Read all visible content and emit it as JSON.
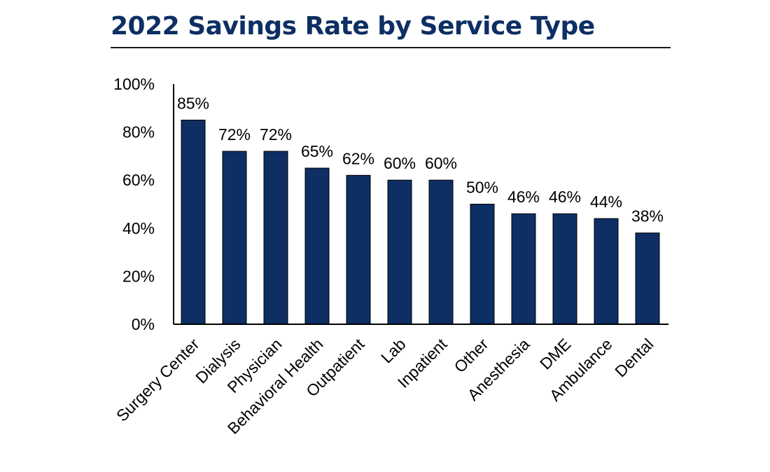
{
  "chart_data": {
    "type": "bar",
    "title": "2022 Savings Rate by Service Type",
    "categories": [
      "Surgery Center",
      "Dialysis",
      "Physician",
      "Behavioral Health",
      "Outpatient",
      "Lab",
      "Inpatient",
      "Other",
      "Anesthesia",
      "DME",
      "Ambulance",
      "Dental"
    ],
    "values": [
      85,
      72,
      72,
      65,
      62,
      60,
      60,
      50,
      46,
      46,
      44,
      38
    ],
    "data_labels": [
      "85%",
      "72%",
      "72%",
      "65%",
      "62%",
      "60%",
      "60%",
      "50%",
      "46%",
      "46%",
      "44%",
      "38%"
    ],
    "ylim": [
      0,
      100
    ],
    "yticks": [
      0,
      20,
      40,
      60,
      80,
      100
    ],
    "ytick_labels": [
      "0%",
      "20%",
      "40%",
      "60%",
      "80%",
      "100%"
    ],
    "xlabel": "",
    "ylabel": "",
    "grid": false,
    "legend": "none",
    "bar_color": "#0d2f64",
    "title_color": "#0d2f64"
  }
}
